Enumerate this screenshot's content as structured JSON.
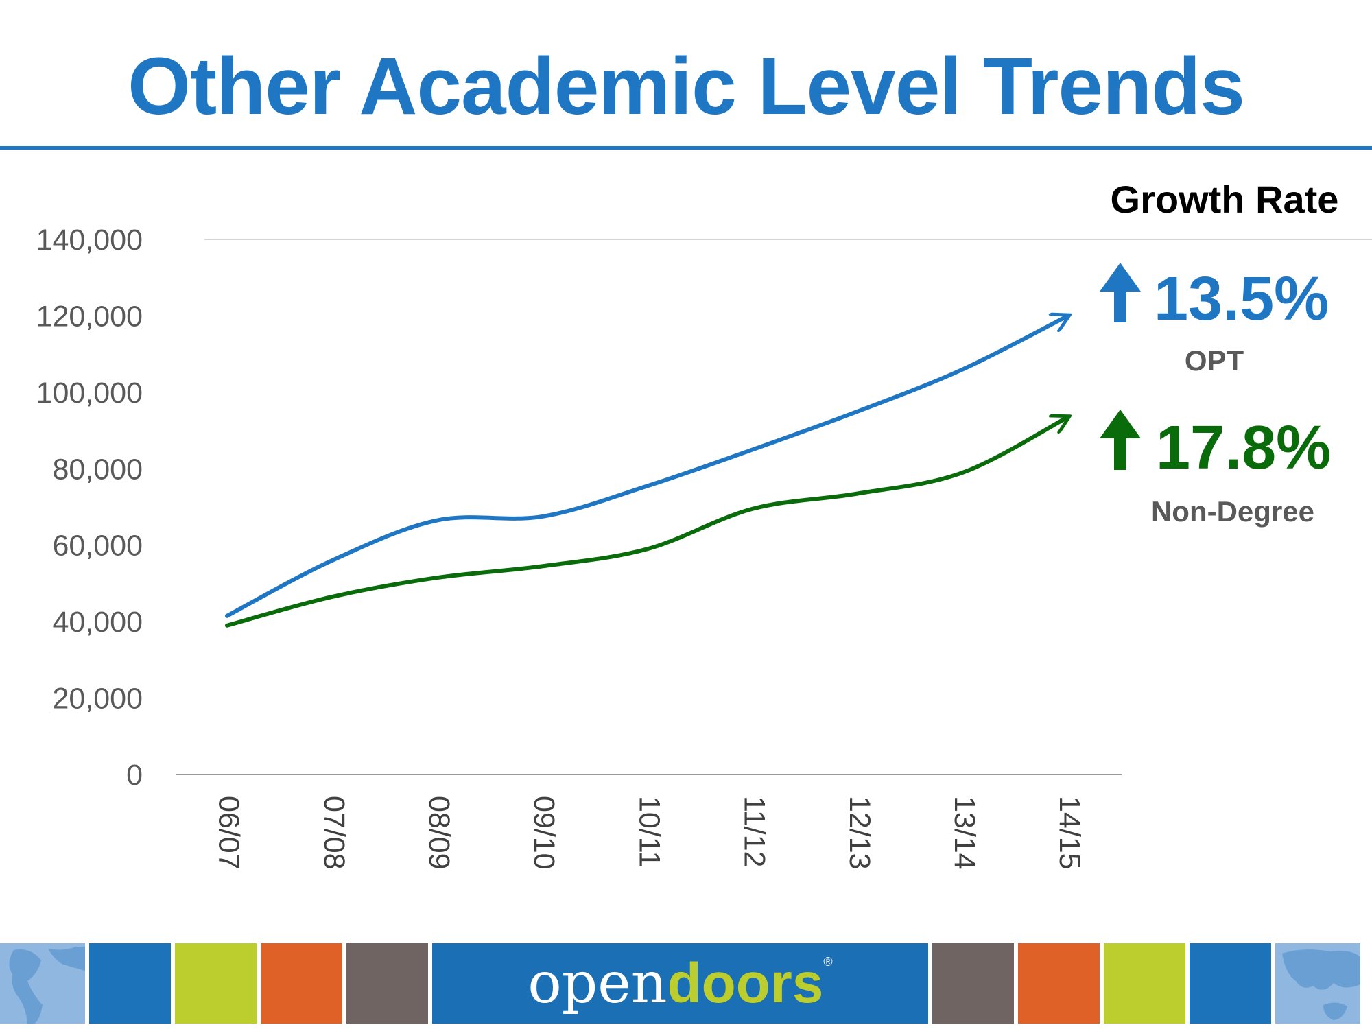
{
  "header": {
    "title": "Other Academic Level Trends"
  },
  "chart_data": {
    "type": "line",
    "categories": [
      "06/07",
      "07/08",
      "08/09",
      "09/10",
      "10/11",
      "11/12",
      "12/13",
      "13/14",
      "14/15"
    ],
    "series": [
      {
        "name": "OPT",
        "color": "#1f77c4",
        "values": [
          41500,
          56000,
          66500,
          67500,
          75500,
          85000,
          95000,
          106000,
          120000
        ]
      },
      {
        "name": "Non-Degree",
        "color": "#0a6b0a",
        "values": [
          39000,
          46500,
          51500,
          54500,
          59000,
          69500,
          73500,
          79000,
          93500
        ]
      }
    ],
    "y_ticks": [
      "0",
      "20,000",
      "40,000",
      "60,000",
      "80,000",
      "100,000",
      "120,000",
      "140,000"
    ],
    "ylim": [
      0,
      140000
    ],
    "gridlines": [
      140000
    ],
    "title": "",
    "xlabel": "",
    "ylabel": ""
  },
  "growth": {
    "heading": "Growth Rate",
    "items": [
      {
        "label": "OPT",
        "value": "13.5%",
        "color": "#1f77c4"
      },
      {
        "label": "Non-Degree",
        "value": "17.8%",
        "color": "#0a6b0a"
      }
    ]
  },
  "footer": {
    "logo_open": "open",
    "logo_doors": "doors",
    "logo_reg": "®",
    "tile_colors": [
      "#1d73b9",
      "#bccd2e",
      "#df6127",
      "#6f6462"
    ],
    "logo_bg": "#1a6fb5",
    "map_color": "#6a9fd3"
  }
}
